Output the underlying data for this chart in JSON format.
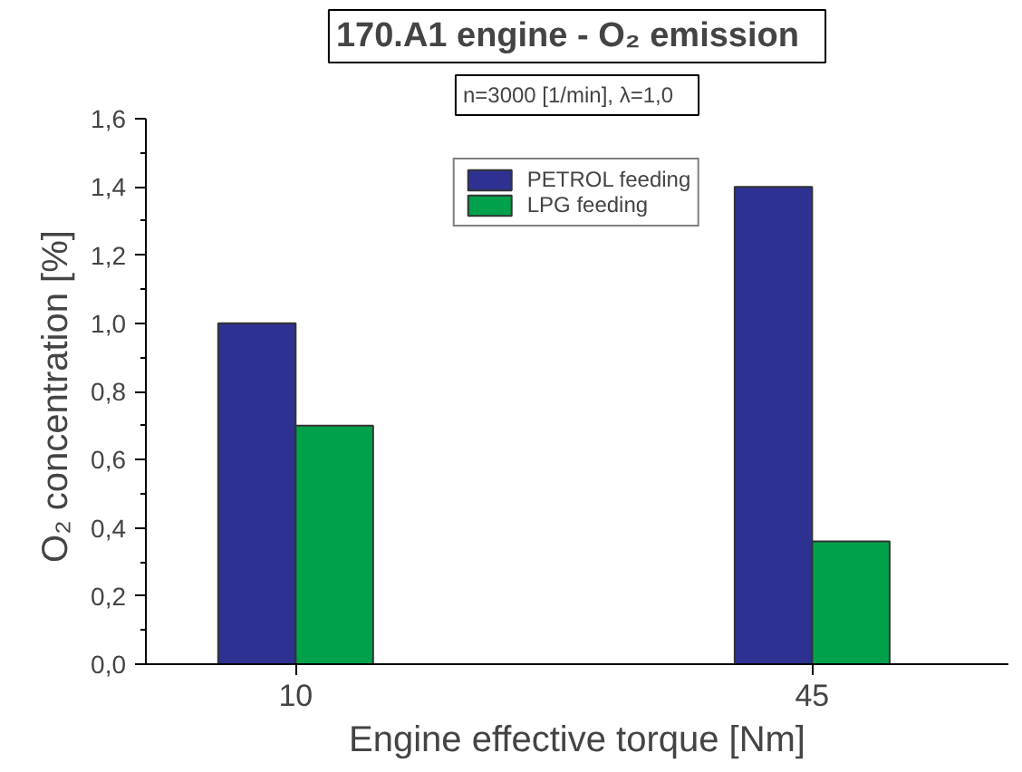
{
  "chart_data": {
    "type": "bar",
    "title": "170.A1 engine -   O₂ emission",
    "subtitle": "n=3000 [1/min],    λ=1,0",
    "xlabel": "Engine effective torque [Nm]",
    "ylabel": "O₂ concentration  [%]",
    "categories": [
      "10",
      "45"
    ],
    "series": [
      {
        "name": "PETROL feeding",
        "color": "#2e3192",
        "values": [
          1.0,
          1.4
        ]
      },
      {
        "name": "LPG feeding",
        "color": "#00a14b",
        "values": [
          0.7,
          0.36
        ]
      }
    ],
    "ylim": [
      0,
      1.6
    ],
    "yticks": [
      {
        "value": 0,
        "label": "0,0"
      },
      {
        "value": 0.2,
        "label": "0,2"
      },
      {
        "value": 0.4,
        "label": "0,4"
      },
      {
        "value": 0.6,
        "label": "0,6"
      },
      {
        "value": 0.8,
        "label": "0,8"
      },
      {
        "value": 1.0,
        "label": "1,0"
      },
      {
        "value": 1.2,
        "label": "1,2"
      },
      {
        "value": 1.4,
        "label": "1,4"
      },
      {
        "value": 1.6,
        "label": "1,6"
      }
    ],
    "legend": "top",
    "grid": false
  }
}
